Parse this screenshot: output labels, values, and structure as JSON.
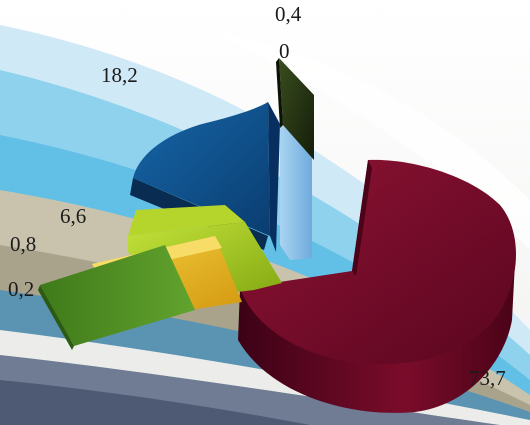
{
  "chart_data": {
    "type": "pie",
    "title": "",
    "categories": [
      "",
      "",
      "",
      "",
      "",
      "",
      ""
    ],
    "values": [
      73.7,
      0.2,
      0.8,
      6.6,
      18.2,
      0,
      0.4
    ],
    "value_labels": [
      "73,7",
      "0,2",
      "0,8",
      "6,6",
      "18,2",
      "0",
      "0,4"
    ],
    "colors": [
      "#7d0d2b",
      "#4f8a23",
      "#e6b41e",
      "#9cc21a",
      "#0d4f8c",
      "#8ec3ea",
      "#233212"
    ],
    "style": "3d-exploded",
    "legend": "none"
  }
}
